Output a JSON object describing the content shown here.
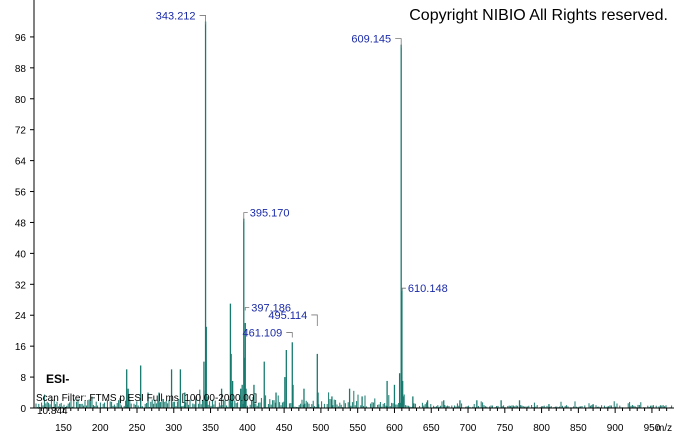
{
  "chart_data": {
    "type": "bar",
    "title": "",
    "xlabel": "m/z",
    "ylabel": "",
    "xlim": [
      110,
      980
    ],
    "ylim": [
      0,
      104
    ],
    "x_ticks": [
      150,
      200,
      250,
      300,
      350,
      400,
      450,
      500,
      550,
      600,
      650,
      700,
      750,
      800,
      850,
      900,
      950
    ],
    "y_ticks": [
      0,
      8,
      16,
      24,
      32,
      40,
      48,
      56,
      64,
      72,
      80,
      88,
      96
    ],
    "grid": false,
    "color": "#177a6e",
    "copyright": "Copyright NIBIO All Rights reserved.",
    "ion_mode": "ESI-",
    "scan_filter": "Scan Filter: FTMS p ESI Full ms [100.00-2000.00]",
    "base_intensity": "10.844",
    "peaks": [
      {
        "x": 236,
        "y": 10
      },
      {
        "x": 238,
        "y": 5
      },
      {
        "x": 255,
        "y": 11
      },
      {
        "x": 265,
        "y": 4
      },
      {
        "x": 280,
        "y": 4
      },
      {
        "x": 297,
        "y": 10
      },
      {
        "x": 309,
        "y": 10
      },
      {
        "x": 315,
        "y": 4
      },
      {
        "x": 330,
        "y": 3
      },
      {
        "x": 341,
        "y": 12
      },
      {
        "x": 343.212,
        "y": 100
      },
      {
        "x": 344.2,
        "y": 21
      },
      {
        "x": 345.2,
        "y": 3
      },
      {
        "x": 365,
        "y": 5
      },
      {
        "x": 377,
        "y": 27
      },
      {
        "x": 378,
        "y": 14
      },
      {
        "x": 380,
        "y": 7
      },
      {
        "x": 391,
        "y": 5
      },
      {
        "x": 393,
        "y": 6
      },
      {
        "x": 395.17,
        "y": 49
      },
      {
        "x": 396.2,
        "y": 13
      },
      {
        "x": 397.186,
        "y": 22
      },
      {
        "x": 398.2,
        "y": 5
      },
      {
        "x": 409,
        "y": 6
      },
      {
        "x": 423,
        "y": 12
      },
      {
        "x": 439,
        "y": 4
      },
      {
        "x": 451,
        "y": 8
      },
      {
        "x": 453,
        "y": 15
      },
      {
        "x": 461.109,
        "y": 17
      },
      {
        "x": 462.1,
        "y": 6
      },
      {
        "x": 477,
        "y": 5
      },
      {
        "x": 495.114,
        "y": 14
      },
      {
        "x": 496.1,
        "y": 4
      },
      {
        "x": 515,
        "y": 3
      },
      {
        "x": 539,
        "y": 5
      },
      {
        "x": 556,
        "y": 3
      },
      {
        "x": 590,
        "y": 7
      },
      {
        "x": 600,
        "y": 6
      },
      {
        "x": 607,
        "y": 9
      },
      {
        "x": 609.145,
        "y": 94
      },
      {
        "x": 610.148,
        "y": 31
      },
      {
        "x": 611.15,
        "y": 7
      },
      {
        "x": 612,
        "y": 3
      },
      {
        "x": 625,
        "y": 3
      },
      {
        "x": 645,
        "y": 2
      },
      {
        "x": 667,
        "y": 2
      },
      {
        "x": 689,
        "y": 2
      },
      {
        "x": 712,
        "y": 2
      },
      {
        "x": 745,
        "y": 2
      },
      {
        "x": 770,
        "y": 2
      },
      {
        "x": 810,
        "y": 1
      },
      {
        "x": 870,
        "y": 1
      }
    ],
    "labels": [
      {
        "text": "343.212",
        "x": 343.212,
        "y": 100
      },
      {
        "text": "609.145",
        "x": 609.145,
        "y": 94
      },
      {
        "text": "395.170",
        "x": 395.17,
        "y": 49
      },
      {
        "text": "610.148",
        "x": 610.148,
        "y": 31
      },
      {
        "text": "397.186",
        "x": 397.186,
        "y": 26
      },
      {
        "text": "495.114",
        "x": 495.114,
        "y": 22
      },
      {
        "text": "461.109",
        "x": 461.109,
        "y": 19
      }
    ]
  }
}
